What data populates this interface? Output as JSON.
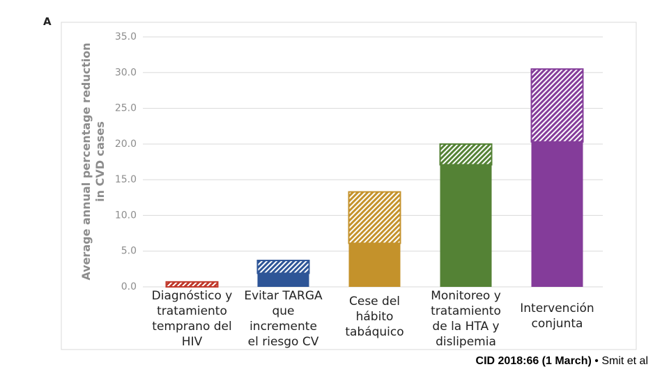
{
  "chart_data": {
    "type": "stacked-hatched-bar",
    "panel_label": "A",
    "y_label": "Average annual percentage reduction in CVD cases",
    "categories": [
      "Diagnóstico y\ntratamiento\ntemprano del\nHIV",
      "Evitar TARGA\nque\nincremente\nel riesgo CV",
      "Cese del\nhábito\ntabáquico",
      "Monitoreo y\ntratamiento\nde la HTA y\ndislipemia",
      "Intervención\nconjunta"
    ],
    "colors": [
      "#c0392b",
      "#2e5597",
      "#c4922b",
      "#548235",
      "#843c9a"
    ],
    "series": [
      {
        "pattern": "solid",
        "values": [
          0,
          1.9,
          6.1,
          17.1,
          20.3
        ]
      },
      {
        "pattern": "hatched",
        "values": [
          0.7,
          1.8,
          7.2,
          2.9,
          10.2
        ]
      }
    ],
    "ylim": [
      0,
      35
    ],
    "yticks": [
      {
        "value": 0,
        "label": "0.0"
      },
      {
        "value": 5,
        "label": "5.0"
      },
      {
        "value": 10,
        "label": "10.0"
      },
      {
        "value": 15,
        "label": "15.0"
      },
      {
        "value": 20,
        "label": "20.0"
      },
      {
        "value": 25,
        "label": "25.0"
      },
      {
        "value": 30,
        "label": "30.0"
      },
      {
        "value": 35,
        "label": "35.0"
      }
    ],
    "grid": true,
    "source_bold": "CID 2018:66 (1 March)",
    "source_rest": "• Smit et al"
  }
}
